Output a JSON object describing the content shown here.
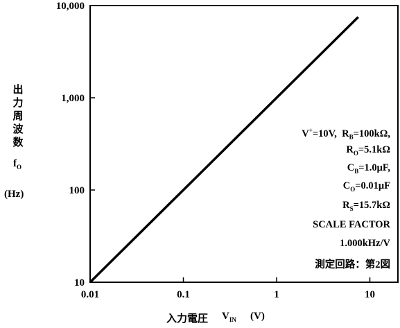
{
  "chart_data": {
    "type": "line",
    "x_scale": "log",
    "y_scale": "log",
    "xlim": [
      0.01,
      20
    ],
    "ylim": [
      10,
      10000
    ],
    "x_ticks": [
      {
        "value": 0.01,
        "label": "0.01"
      },
      {
        "value": 0.1,
        "label": "0.1"
      },
      {
        "value": 1,
        "label": "1"
      },
      {
        "value": 10,
        "label": "10"
      }
    ],
    "y_ticks": [
      {
        "value": 10,
        "label": "10"
      },
      {
        "value": 100,
        "label": "100"
      },
      {
        "value": 1000,
        "label": "1,000"
      },
      {
        "value": 10000,
        "label": "10,000"
      }
    ],
    "series": [
      {
        "points": [
          {
            "x": 0.01,
            "y": 10
          },
          {
            "x": 7.5,
            "y": 7500
          }
        ]
      }
    ],
    "ylabel": {
      "chars": [
        "出",
        "力",
        "周",
        "波",
        "数"
      ],
      "symbol": "f",
      "symbol_sub": "O",
      "unit": "(Hz)"
    },
    "xlabel": {
      "text": "入力電圧",
      "symbol": "V",
      "symbol_sub": "IN",
      "unit": "(V)"
    },
    "annotations": {
      "line1": {
        "v": "V",
        "v_sup": "+",
        "v_val": "=10V,",
        "rb": "R",
        "rb_sub": "B",
        "rb_val": "=100kΩ,"
      },
      "line2": {
        "sym": "R",
        "sub": "O",
        "val": "=5.1kΩ"
      },
      "line3": {
        "sym": "C",
        "sub": "B",
        "val": "=1.0μF,"
      },
      "line4": {
        "sym": "C",
        "sub": "O",
        "val": "=0.01μF"
      },
      "line5": {
        "sym": "R",
        "sub": "S",
        "val": "=15.7kΩ"
      },
      "line6": "SCALE FACTOR",
      "line7": "1.000kHz/V",
      "line8": "測定回路：第2図"
    }
  }
}
